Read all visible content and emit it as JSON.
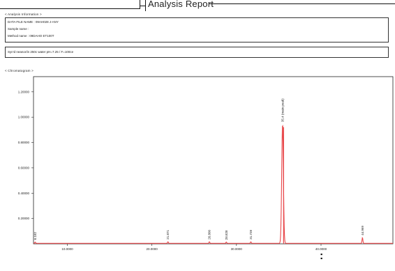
{
  "header": {
    "title": "Analysis Report"
  },
  "sample_section": {
    "label": "< Analysis Information >",
    "lines": [
      "DATA FILE NAME : 09AH028 J-ANY",
      "Sample name :",
      "Method name : 09DAHO ET100T"
    ]
  },
  "condition_box": {
    "text": "Syn'd neanor/in 250c water pH=7.25 / F=100ce"
  },
  "chromatogram_section": {
    "label": "< Chromatogram >"
  },
  "footer": {
    "marker": ":"
  },
  "chart_data": {
    "type": "line",
    "title": "",
    "xlabel": "",
    "ylabel": "",
    "xlim": [
      6.0,
      48.5
    ],
    "ylim": [
      0.0,
      1.32
    ],
    "grid": false,
    "line_color": "#e8474a",
    "x_ticks": [
      10.0,
      20.0,
      30.0,
      40.0
    ],
    "x_tick_labels": [
      "10.0000",
      "20.0000",
      "30.0000",
      "40.0000"
    ],
    "y_ticks": [
      0.2,
      0.4,
      0.6,
      0.8,
      1.0,
      1.2
    ],
    "y_tick_labels": [
      "0.20000",
      "0.40000",
      "0.60000",
      "0.80000",
      "1.00000",
      "1.20000"
    ],
    "peaks": [
      {
        "label": "6.182",
        "rt": 6.2,
        "height": 0.01
      },
      {
        "label": "21.871",
        "rt": 21.9,
        "height": 0.012
      },
      {
        "label": "26.800",
        "rt": 26.8,
        "height": 0.012
      },
      {
        "label": "28.828",
        "rt": 28.8,
        "height": 0.01
      },
      {
        "label": "31.728",
        "rt": 31.7,
        "height": 0.012
      },
      {
        "label": "35.4 (main peak)",
        "rt": 35.45,
        "height": 0.94
      },
      {
        "label": "44.969",
        "rt": 44.9,
        "height": 0.045
      }
    ]
  }
}
